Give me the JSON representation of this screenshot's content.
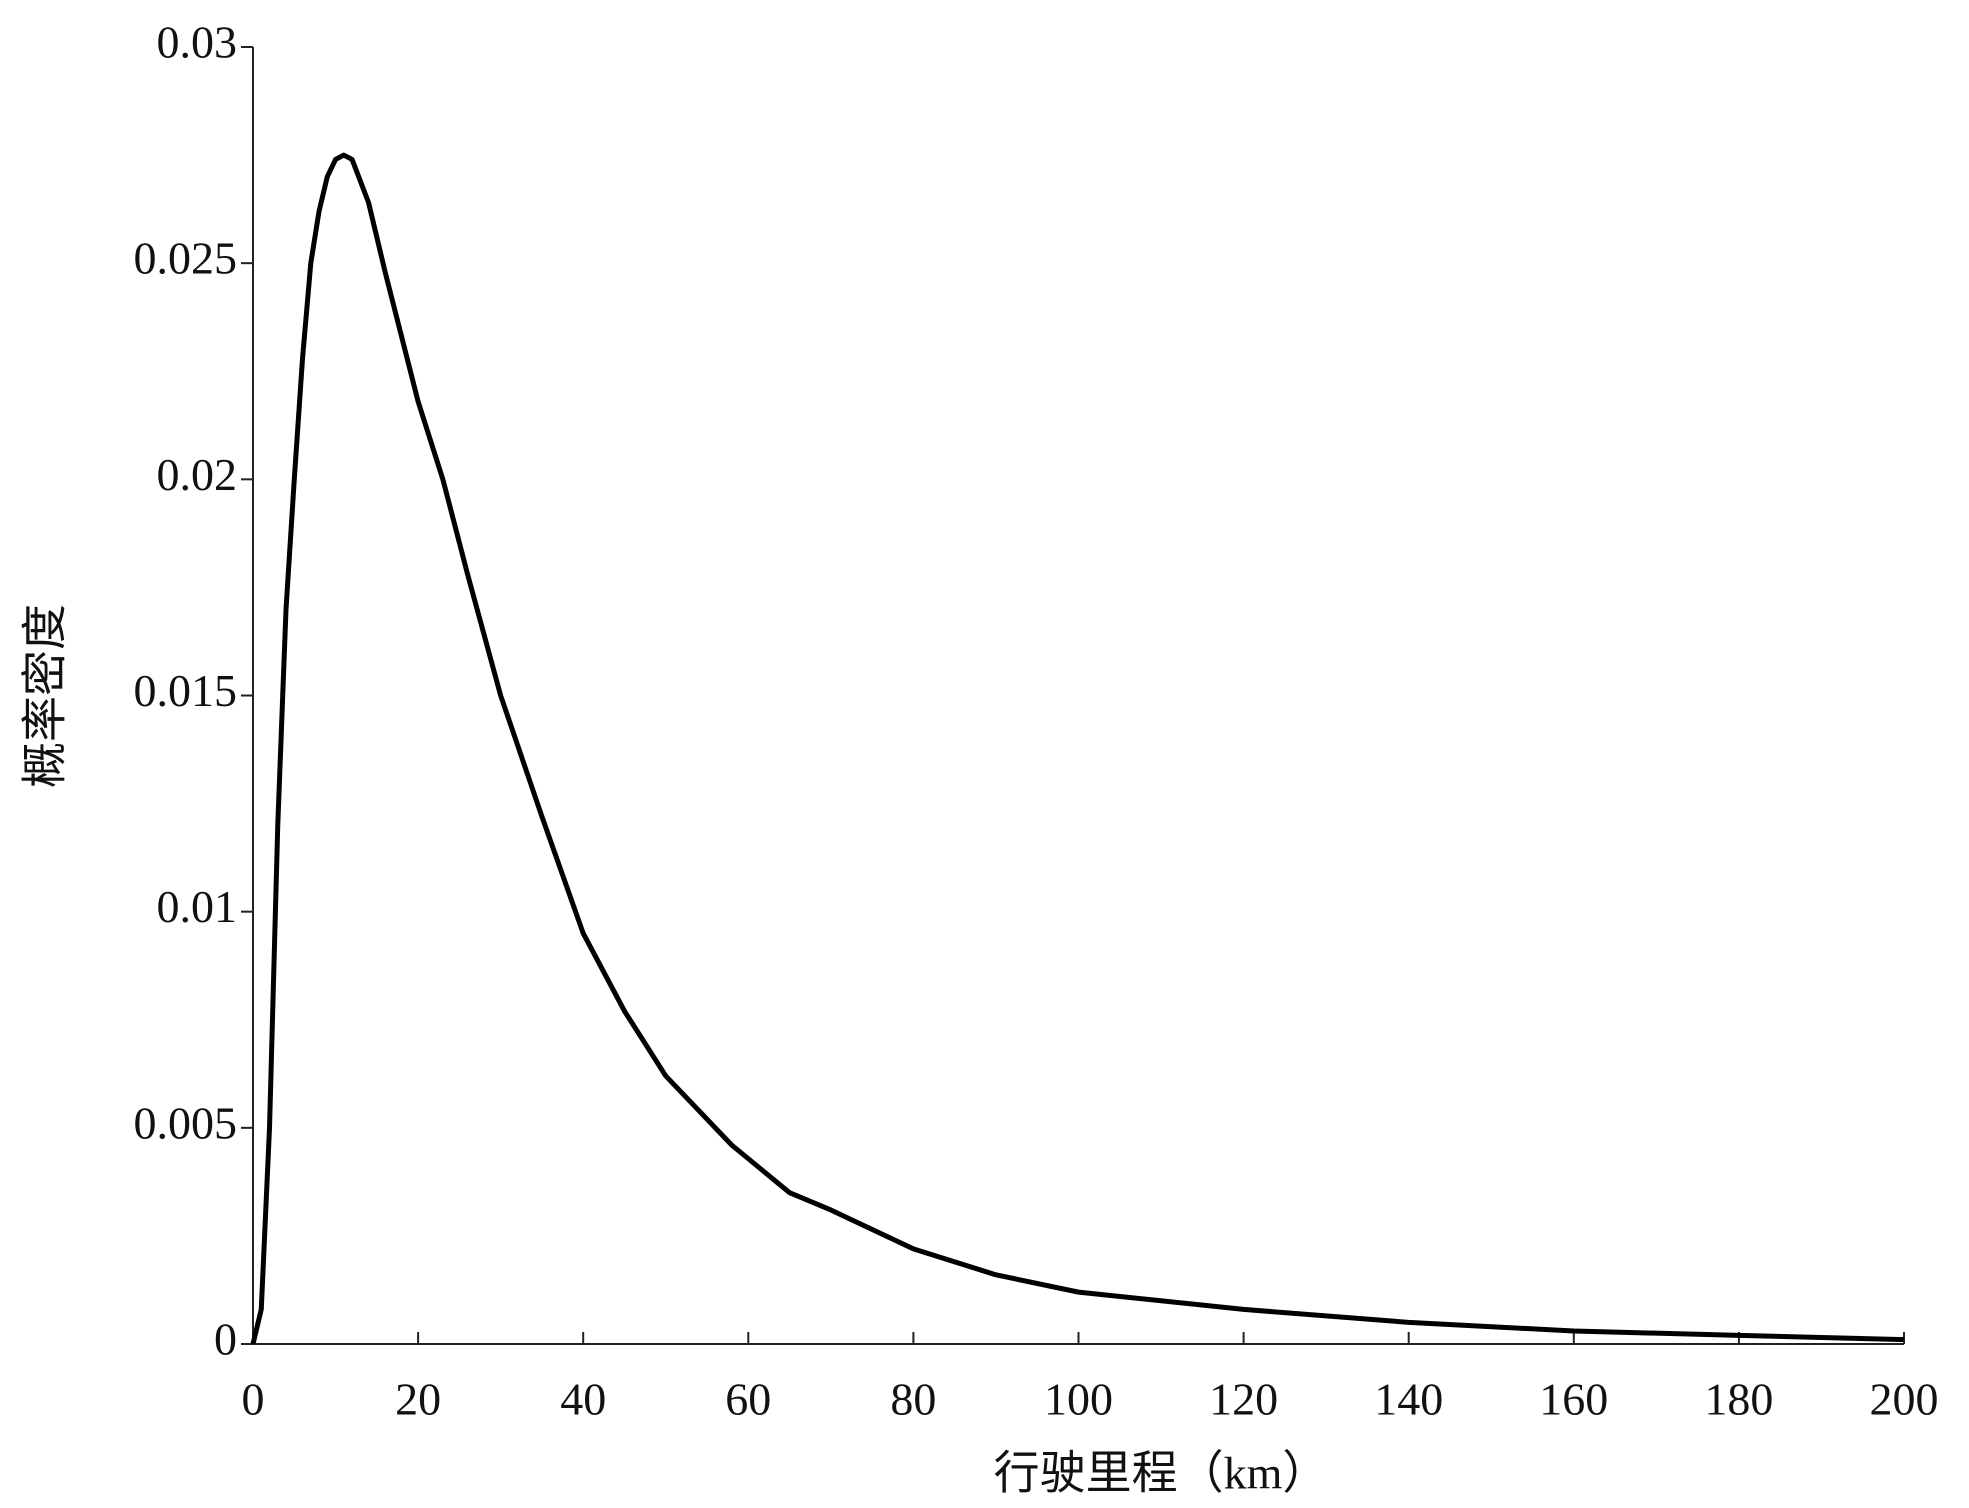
{
  "chart_data": {
    "type": "line",
    "xlabel": "行驶里程（km）",
    "ylabel": "概率密度",
    "x": [
      0,
      1,
      2,
      3,
      4,
      5,
      6,
      7,
      8,
      9,
      10,
      11,
      12,
      14,
      16,
      18,
      20,
      23,
      26,
      30,
      35,
      40,
      45,
      50,
      58,
      65,
      70,
      80,
      90,
      100,
      120,
      140,
      160,
      180,
      200
    ],
    "series": [
      {
        "name": "概率密度",
        "color": "#000000",
        "values": [
          0,
          0.0008,
          0.005,
          0.012,
          0.017,
          0.02,
          0.0228,
          0.025,
          0.0262,
          0.027,
          0.0274,
          0.0275,
          0.0274,
          0.0264,
          0.0248,
          0.0233,
          0.0218,
          0.02,
          0.0178,
          0.015,
          0.0122,
          0.0095,
          0.0077,
          0.0062,
          0.0046,
          0.0035,
          0.0031,
          0.0022,
          0.0016,
          0.0012,
          0.0008,
          0.0005,
          0.0003,
          0.0002,
          0.0001
        ]
      }
    ],
    "xlim": [
      0,
      200
    ],
    "xticks": [
      0,
      20,
      40,
      60,
      80,
      100,
      120,
      140,
      160,
      180,
      200
    ],
    "ylim": [
      0,
      0.03
    ],
    "yticks": [
      0,
      0.005,
      0.01,
      0.015,
      0.02,
      0.025,
      0.03
    ],
    "grid": false
  }
}
